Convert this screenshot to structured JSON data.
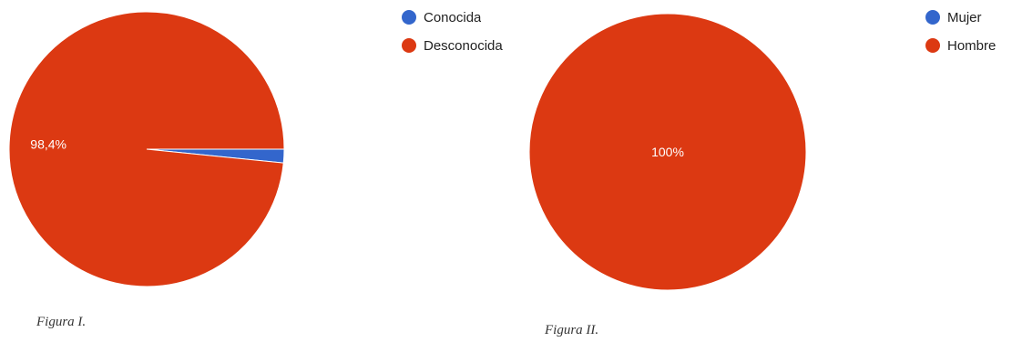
{
  "chart_data": [
    {
      "type": "pie",
      "categories": [
        "Conocida",
        "Desconocida"
      ],
      "values": [
        1.6,
        98.4
      ],
      "colors": [
        "#3366cc",
        "#dc3912"
      ],
      "slice_labels": [
        "",
        "98,4%"
      ],
      "legend_position": "right",
      "caption": "Figura I."
    },
    {
      "type": "pie",
      "categories": [
        "Mujer",
        "Hombre"
      ],
      "values": [
        0,
        100
      ],
      "colors": [
        "#3366cc",
        "#dc3912"
      ],
      "slice_labels": [
        "",
        "100%"
      ],
      "legend_position": "right",
      "caption": "Figura II."
    }
  ]
}
